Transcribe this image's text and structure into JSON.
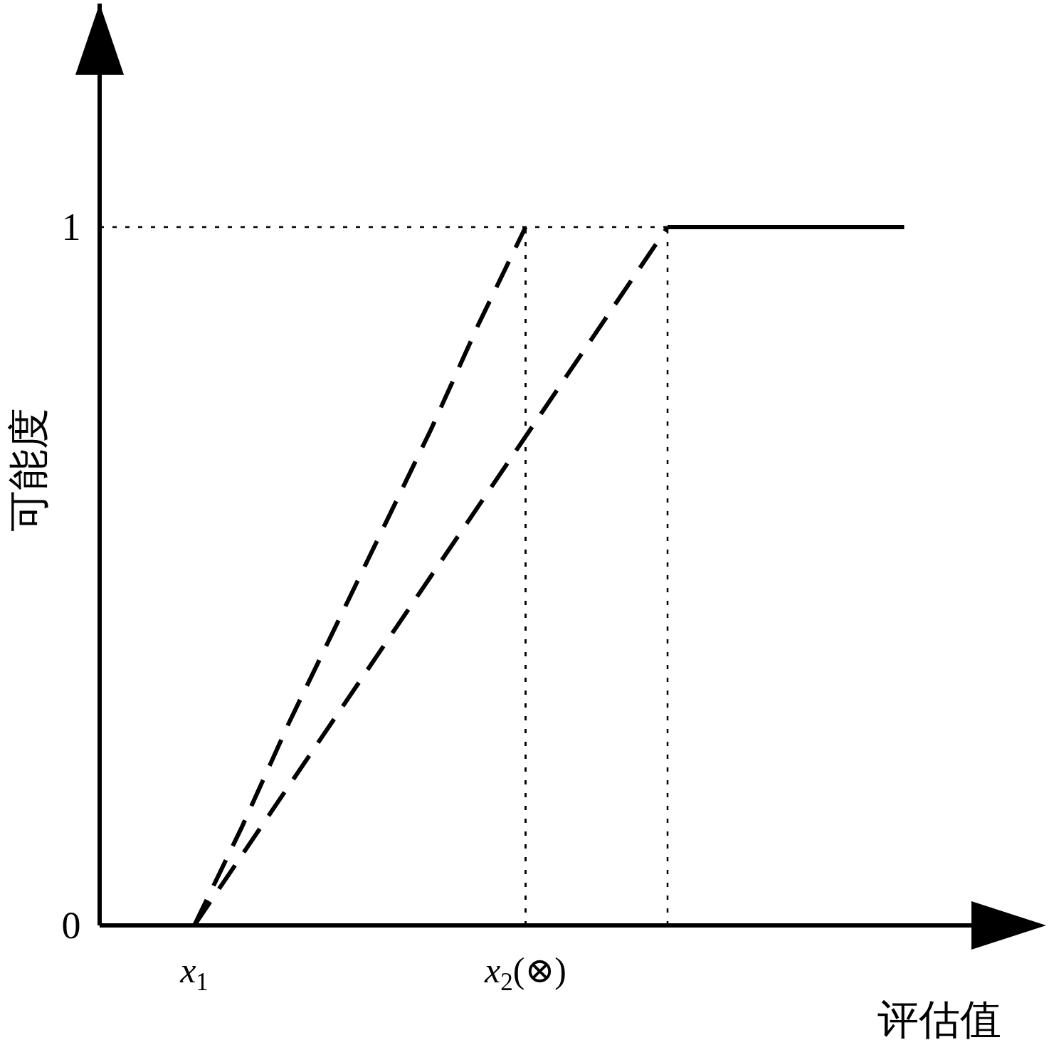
{
  "chart_data": {
    "type": "line",
    "xlabel": "评估值",
    "ylabel": "可能度",
    "ylim": [
      0,
      1.32
    ],
    "categories": [
      null,
      null,
      "x$_{1}$",
      null,
      null,
      null,
      null,
      null,
      null,
      "x$_{2}$(⊗)",
      null,
      null,
      null,
      null,
      null,
      null,
      null,
      null,
      null,
      null,
      null
    ],
    "yticks": [
      0,
      1
    ],
    "grid": false,
    "marker": "none",
    "series": [
      {
        "line_style": "dashed",
        "color": "#000000",
        "values": [
          null,
          null,
          0,
          0.14,
          0.29,
          0.43,
          0.57,
          0.71,
          0.86,
          1,
          null,
          null,
          null,
          null,
          null,
          null,
          null,
          null,
          null,
          null,
          null
        ]
      },
      {
        "line_style": "dashed",
        "color": "#000000",
        "values": [
          null,
          null,
          0,
          0.1,
          0.2,
          0.3,
          0.4,
          0.5,
          0.6,
          0.7,
          0.8,
          0.9,
          1,
          null,
          null,
          null,
          null,
          null,
          null,
          null,
          null
        ]
      },
      {
        "line_style": "solid",
        "color": "#000000",
        "values": [
          null,
          null,
          null,
          null,
          null,
          null,
          null,
          null,
          null,
          null,
          null,
          null,
          1,
          1,
          1,
          1,
          1,
          1,
          null,
          null,
          null
        ]
      },
      {
        "line_style": "dotted",
        "color": "#000000",
        "values": [
          1,
          1,
          1,
          1,
          1,
          1,
          1,
          1,
          1,
          1,
          1,
          1,
          1,
          null,
          null,
          null,
          null,
          null,
          null,
          null,
          null
        ]
      }
    ],
    "ref_lines": [
      {
        "axis": "x",
        "value": "x$_{2}$(⊗)",
        "line_style": "dotted"
      }
    ]
  }
}
